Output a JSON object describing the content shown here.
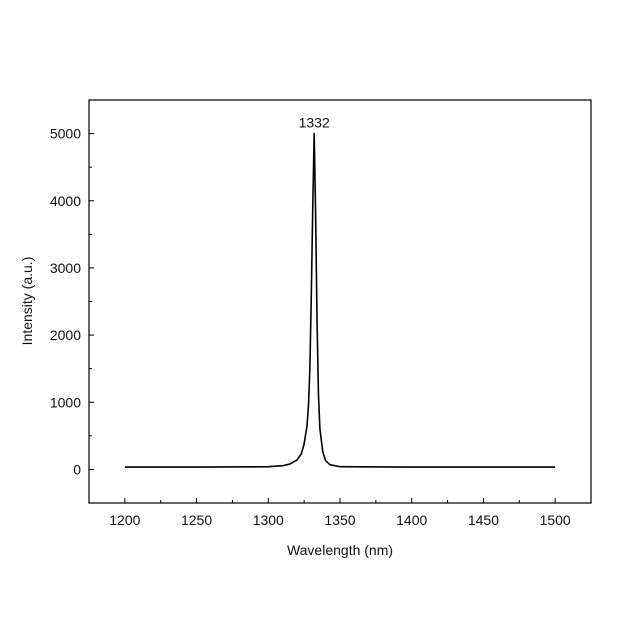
{
  "chart_data": {
    "type": "line",
    "title": "",
    "xlabel": "Wavelength (nm)",
    "ylabel": "Intensity (a.u.)",
    "xlim": [
      1175,
      1525
    ],
    "ylim": [
      -500,
      5500
    ],
    "x_ticks": [
      1200,
      1250,
      1300,
      1350,
      1400,
      1450,
      1500
    ],
    "y_ticks": [
      0,
      1000,
      2000,
      3000,
      4000,
      5000
    ],
    "x_tick_labels": [
      "1200",
      "1250",
      "1300",
      "1350",
      "1400",
      "1450",
      "1500"
    ],
    "y_tick_labels": [
      "0",
      "1000",
      "2000",
      "3000",
      "4000",
      "5000"
    ],
    "grid": false,
    "legend": "none",
    "line_color": "#000000",
    "annotations": [
      {
        "text": "1332",
        "x": 1332,
        "y": 5000
      }
    ],
    "series": [
      {
        "x": [
          1200,
          1250,
          1300,
          1310,
          1315,
          1320,
          1323,
          1325,
          1327,
          1328,
          1329,
          1330,
          1331,
          1332,
          1333,
          1334,
          1335,
          1336,
          1338,
          1340,
          1343,
          1350,
          1400,
          1450,
          1500
        ],
        "values": [
          35,
          35,
          40,
          55,
          80,
          140,
          230,
          380,
          650,
          950,
          1500,
          2600,
          3900,
          5000,
          3800,
          2200,
          1100,
          600,
          260,
          130,
          70,
          40,
          35,
          35,
          35
        ]
      }
    ]
  }
}
